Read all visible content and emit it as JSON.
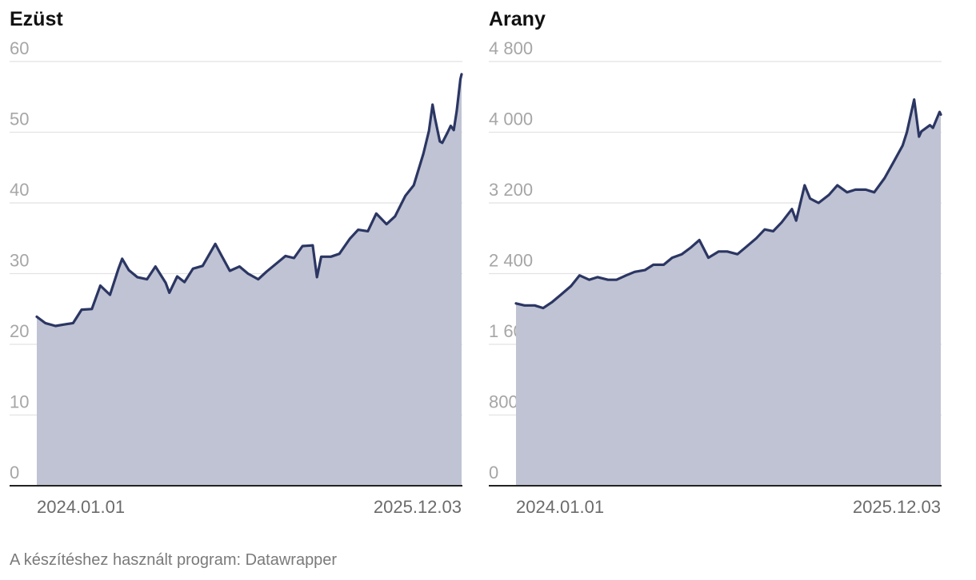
{
  "chart_data": [
    {
      "type": "area",
      "title": "Ezüst",
      "xlabel": "",
      "ylabel": "",
      "ylim": [
        0,
        60
      ],
      "yticks": [
        "0",
        "10",
        "20",
        "30",
        "40",
        "50",
        "60"
      ],
      "xticks": [
        "2024.01.01",
        "2025.12.03"
      ],
      "x_start": "2024-01-01",
      "x_end": "2025-12-03",
      "grid": true,
      "line_color": "#2b3663",
      "fill_color": "#c0c3d3",
      "x": [
        "2024-01-01",
        "2024-01-15",
        "2024-02-01",
        "2024-02-15",
        "2024-03-01",
        "2024-03-15",
        "2024-04-01",
        "2024-04-15",
        "2024-05-01",
        "2024-05-15",
        "2024-05-21",
        "2024-06-01",
        "2024-06-15",
        "2024-07-01",
        "2024-07-15",
        "2024-08-01",
        "2024-08-07",
        "2024-08-20",
        "2024-09-01",
        "2024-09-15",
        "2024-10-01",
        "2024-10-22",
        "2024-11-01",
        "2024-11-15",
        "2024-12-01",
        "2024-12-15",
        "2025-01-01",
        "2025-01-15",
        "2025-02-01",
        "2025-02-15",
        "2025-03-01",
        "2025-03-15",
        "2025-04-01",
        "2025-04-08",
        "2025-04-15",
        "2025-05-01",
        "2025-05-15",
        "2025-06-01",
        "2025-06-15",
        "2025-07-01",
        "2025-07-15",
        "2025-08-01",
        "2025-08-15",
        "2025-09-01",
        "2025-09-15",
        "2025-10-01",
        "2025-10-10",
        "2025-10-16",
        "2025-10-20",
        "2025-10-28",
        "2025-11-01",
        "2025-11-10",
        "2025-11-15",
        "2025-11-20",
        "2025-11-25",
        "2025-12-01",
        "2025-12-03"
      ],
      "values": [
        23.9,
        23.0,
        22.6,
        22.8,
        23.0,
        24.9,
        25.0,
        28.3,
        27.0,
        30.7,
        32.1,
        30.5,
        29.5,
        29.2,
        31.0,
        28.7,
        27.3,
        29.6,
        28.8,
        30.7,
        31.1,
        34.2,
        32.6,
        30.4,
        31.0,
        30.0,
        29.2,
        30.3,
        31.5,
        32.5,
        32.2,
        33.9,
        34.0,
        29.5,
        32.4,
        32.4,
        32.8,
        34.9,
        36.2,
        36.0,
        38.5,
        37.0,
        38.1,
        41.0,
        42.5,
        47.0,
        50.2,
        53.9,
        52.0,
        48.7,
        48.5,
        50.0,
        50.9,
        50.3,
        53.0,
        57.5,
        58.2
      ]
    },
    {
      "type": "area",
      "title": "Arany",
      "xlabel": "",
      "ylabel": "",
      "ylim": [
        0,
        4800
      ],
      "yticks": [
        "0",
        "800",
        "1 600",
        "2 400",
        "3 200",
        "4 000",
        "4 800"
      ],
      "xticks": [
        "2024.01.01",
        "2025.12.03"
      ],
      "x_start": "2024-01-01",
      "x_end": "2025-12-03",
      "grid": true,
      "line_color": "#2b3663",
      "fill_color": "#c0c3d3",
      "x": [
        "2024-01-01",
        "2024-01-15",
        "2024-02-01",
        "2024-02-15",
        "2024-03-01",
        "2024-03-15",
        "2024-04-01",
        "2024-04-15",
        "2024-05-01",
        "2024-05-15",
        "2024-06-01",
        "2024-06-15",
        "2024-07-01",
        "2024-07-15",
        "2024-08-01",
        "2024-08-15",
        "2024-09-01",
        "2024-09-15",
        "2024-10-01",
        "2024-10-15",
        "2024-10-30",
        "2024-11-14",
        "2024-12-01",
        "2024-12-15",
        "2025-01-01",
        "2025-01-15",
        "2025-02-01",
        "2025-02-15",
        "2025-03-01",
        "2025-03-15",
        "2025-04-01",
        "2025-04-08",
        "2025-04-22",
        "2025-05-01",
        "2025-05-15",
        "2025-06-01",
        "2025-06-15",
        "2025-07-01",
        "2025-07-15",
        "2025-08-01",
        "2025-08-15",
        "2025-09-01",
        "2025-09-15",
        "2025-10-01",
        "2025-10-08",
        "2025-10-20",
        "2025-10-28",
        "2025-11-01",
        "2025-11-15",
        "2025-11-20",
        "2025-12-01",
        "2025-12-03"
      ],
      "values": [
        2063,
        2040,
        2040,
        2010,
        2080,
        2160,
        2260,
        2380,
        2330,
        2360,
        2330,
        2330,
        2380,
        2420,
        2440,
        2500,
        2500,
        2580,
        2620,
        2690,
        2780,
        2580,
        2650,
        2650,
        2620,
        2700,
        2800,
        2900,
        2880,
        2980,
        3130,
        3000,
        3400,
        3250,
        3200,
        3290,
        3400,
        3320,
        3350,
        3350,
        3320,
        3480,
        3650,
        3850,
        4000,
        4370,
        3950,
        4010,
        4080,
        4050,
        4230,
        4200
      ]
    }
  ],
  "footer": {
    "credit": "A készítéshez használt program: Datawrapper"
  }
}
